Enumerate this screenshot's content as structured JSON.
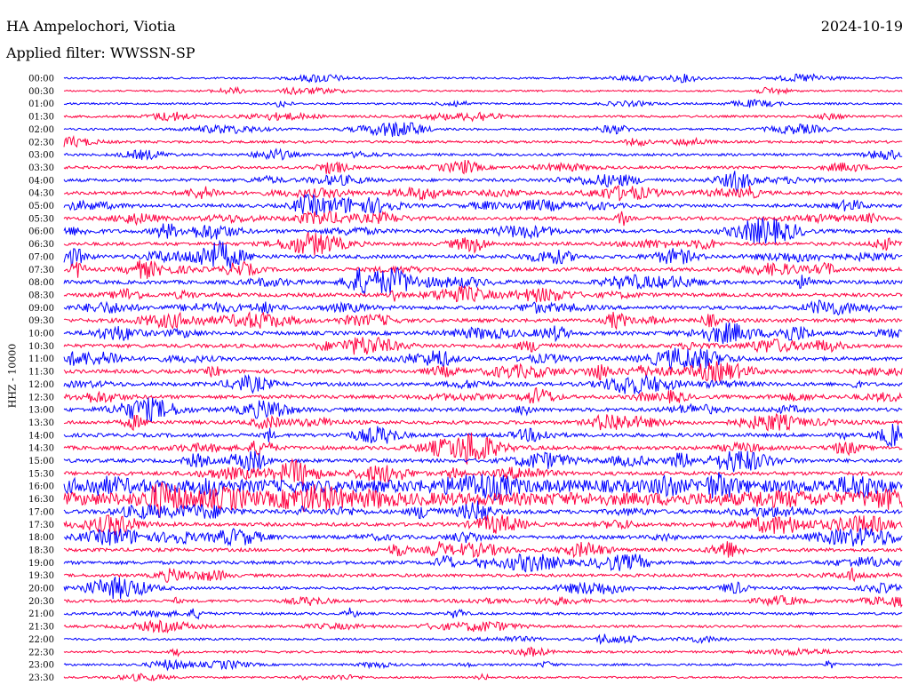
{
  "header": {
    "station": "HA Ampelochori, Viotia",
    "date": "2024-10-19",
    "filter": "Applied filter: WWSSN-SP"
  },
  "chart_data": {
    "type": "line",
    "ylabel": "HHZ - 10000",
    "colors": [
      "#0000ff",
      "#ff0040"
    ],
    "rows": [
      "00:00",
      "00:30",
      "01:00",
      "01:30",
      "02:00",
      "02:30",
      "03:00",
      "03:30",
      "04:00",
      "04:30",
      "05:00",
      "05:30",
      "06:00",
      "06:30",
      "07:00",
      "07:30",
      "08:00",
      "08:30",
      "09:00",
      "09:30",
      "10:00",
      "10:30",
      "11:00",
      "11:30",
      "12:00",
      "12:30",
      "13:00",
      "13:30",
      "14:00",
      "14:30",
      "15:00",
      "15:30",
      "16:00",
      "16:30",
      "17:00",
      "17:30",
      "18:00",
      "18:30",
      "19:00",
      "19:30",
      "20:00",
      "20:30",
      "21:00",
      "21:30",
      "22:00",
      "22:30",
      "23:00",
      "23:30"
    ],
    "activity": [
      0.3,
      0.2,
      0.3,
      0.4,
      0.4,
      0.5,
      0.5,
      0.6,
      0.7,
      0.8,
      0.8,
      0.8,
      0.9,
      0.8,
      0.9,
      0.9,
      0.9,
      0.9,
      0.9,
      0.9,
      0.9,
      0.9,
      0.9,
      0.9,
      0.9,
      0.9,
      0.9,
      0.9,
      0.9,
      0.9,
      0.9,
      0.9,
      1.0,
      1.0,
      1.0,
      0.9,
      0.8,
      0.8,
      0.8,
      0.7,
      0.6,
      0.6,
      0.5,
      0.5,
      0.4,
      0.4,
      0.4,
      0.3
    ]
  }
}
